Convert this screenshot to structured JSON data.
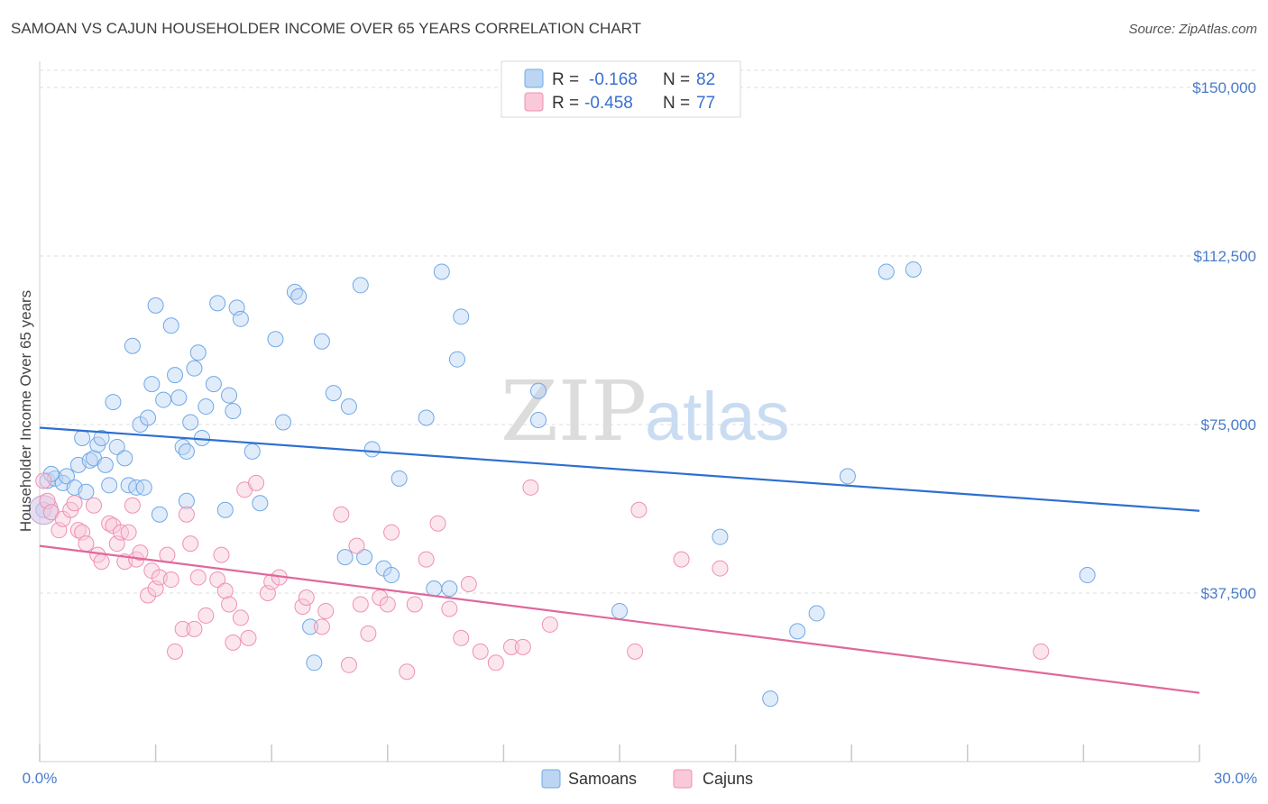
{
  "title": "SAMOAN VS CAJUN HOUSEHOLDER INCOME OVER 65 YEARS CORRELATION CHART",
  "source": "Source: ZipAtlas.com",
  "watermark": {
    "zip": "ZIP",
    "atlas": "atlas"
  },
  "colors": {
    "samoans": "#6fa8e6",
    "cajuns": "#ef90b2",
    "samoans_line": "#2e6fd0",
    "cajuns_line": "#e0689a",
    "tick_label": "#4a7cc9"
  },
  "legend": {
    "rows": [
      {
        "r_label": "R =",
        "r_value": "-0.168",
        "n_label": "N =",
        "n_value": "82"
      },
      {
        "r_label": "R =",
        "r_value": "-0.458",
        "n_label": "N =",
        "n_value": "77"
      }
    ]
  },
  "bottom_legend": [
    "Samoans",
    "Cajuns"
  ],
  "chart_data": {
    "type": "scatter",
    "title": "SAMOAN VS CAJUN HOUSEHOLDER INCOME OVER 65 YEARS CORRELATION CHART",
    "xlabel": "",
    "ylabel": "Householder Income Over 65 years",
    "xlim": [
      0,
      30
    ],
    "ylim": [
      0,
      153000
    ],
    "x_tick_labels": [
      "0.0%",
      "30.0%"
    ],
    "y_ticks": [
      37500,
      75000,
      112500,
      150000
    ],
    "y_tick_labels": [
      "$37,500",
      "$75,000",
      "$112,500",
      "$150,000"
    ],
    "grid": true,
    "series": [
      {
        "name": "Samoans",
        "r": -0.168,
        "n": 82,
        "trend": {
          "x": [
            0,
            30
          ],
          "y": [
            74300,
            55800
          ]
        },
        "points": [
          [
            0.2,
            62500
          ],
          [
            0.4,
            63000
          ],
          [
            0.6,
            62000
          ],
          [
            0.7,
            63500
          ],
          [
            0.9,
            61000
          ],
          [
            1.0,
            66000
          ],
          [
            1.1,
            72000
          ],
          [
            1.3,
            67000
          ],
          [
            1.4,
            67500
          ],
          [
            1.5,
            70500
          ],
          [
            1.6,
            72000
          ],
          [
            1.7,
            66000
          ],
          [
            1.8,
            61500
          ],
          [
            1.9,
            80000
          ],
          [
            2.0,
            70000
          ],
          [
            2.2,
            67500
          ],
          [
            2.3,
            61500
          ],
          [
            2.4,
            92500
          ],
          [
            2.5,
            61000
          ],
          [
            2.6,
            75000
          ],
          [
            2.7,
            61000
          ],
          [
            2.8,
            76500
          ],
          [
            2.9,
            84000
          ],
          [
            3.0,
            101500
          ],
          [
            3.1,
            55000
          ],
          [
            3.2,
            80500
          ],
          [
            3.4,
            97000
          ],
          [
            3.5,
            86000
          ],
          [
            3.6,
            81000
          ],
          [
            3.7,
            70000
          ],
          [
            3.8,
            69000
          ],
          [
            3.9,
            75500
          ],
          [
            4.0,
            87500
          ],
          [
            4.1,
            91000
          ],
          [
            4.2,
            72000
          ],
          [
            4.3,
            79000
          ],
          [
            4.5,
            84000
          ],
          [
            4.6,
            102000
          ],
          [
            4.8,
            56000
          ],
          [
            4.9,
            81500
          ],
          [
            5.0,
            78000
          ],
          [
            5.1,
            101000
          ],
          [
            5.2,
            98500
          ],
          [
            5.5,
            69000
          ],
          [
            5.7,
            57500
          ],
          [
            6.1,
            94000
          ],
          [
            6.3,
            75500
          ],
          [
            6.6,
            104500
          ],
          [
            6.7,
            103500
          ],
          [
            7.0,
            30000
          ],
          [
            7.1,
            22000
          ],
          [
            7.3,
            93500
          ],
          [
            7.6,
            82000
          ],
          [
            7.9,
            45500
          ],
          [
            8.0,
            79000
          ],
          [
            8.3,
            106000
          ],
          [
            8.4,
            45500
          ],
          [
            8.6,
            69500
          ],
          [
            8.9,
            43000
          ],
          [
            9.1,
            41500
          ],
          [
            9.3,
            63000
          ],
          [
            10.0,
            76500
          ],
          [
            10.2,
            38500
          ],
          [
            10.4,
            109000
          ],
          [
            10.6,
            38500
          ],
          [
            10.8,
            89500
          ],
          [
            10.9,
            99000
          ],
          [
            12.9,
            76000
          ],
          [
            12.9,
            82500
          ],
          [
            15.0,
            33500
          ],
          [
            17.6,
            50000
          ],
          [
            18.9,
            14000
          ],
          [
            19.6,
            29000
          ],
          [
            20.1,
            33000
          ],
          [
            20.9,
            63500
          ],
          [
            21.9,
            109000
          ],
          [
            22.6,
            109500
          ],
          [
            27.1,
            41500
          ],
          [
            0.1,
            56000
          ],
          [
            0.3,
            64000
          ],
          [
            1.2,
            60000
          ],
          [
            3.8,
            58000
          ]
        ]
      },
      {
        "name": "Cajuns",
        "r": -0.458,
        "n": 77,
        "trend": {
          "x": [
            0,
            30
          ],
          "y": [
            48000,
            15300
          ]
        },
        "points": [
          [
            0.2,
            58000
          ],
          [
            0.3,
            55500
          ],
          [
            0.5,
            51500
          ],
          [
            0.6,
            54000
          ],
          [
            0.8,
            56000
          ],
          [
            0.9,
            57500
          ],
          [
            1.0,
            51500
          ],
          [
            1.1,
            51000
          ],
          [
            1.2,
            48500
          ],
          [
            1.4,
            57000
          ],
          [
            1.5,
            46000
          ],
          [
            1.6,
            44500
          ],
          [
            1.8,
            53000
          ],
          [
            1.9,
            52500
          ],
          [
            2.0,
            48500
          ],
          [
            2.1,
            51000
          ],
          [
            2.2,
            44500
          ],
          [
            2.3,
            51000
          ],
          [
            2.4,
            57000
          ],
          [
            2.5,
            45000
          ],
          [
            2.6,
            46500
          ],
          [
            2.8,
            37000
          ],
          [
            2.9,
            42500
          ],
          [
            3.0,
            38500
          ],
          [
            3.1,
            41000
          ],
          [
            3.3,
            46000
          ],
          [
            3.4,
            40500
          ],
          [
            3.5,
            24500
          ],
          [
            3.7,
            29500
          ],
          [
            3.8,
            55000
          ],
          [
            3.9,
            48500
          ],
          [
            4.0,
            29500
          ],
          [
            4.1,
            41000
          ],
          [
            4.3,
            32500
          ],
          [
            4.6,
            40500
          ],
          [
            4.7,
            46000
          ],
          [
            4.8,
            38000
          ],
          [
            4.9,
            35000
          ],
          [
            5.0,
            26500
          ],
          [
            5.2,
            32000
          ],
          [
            5.3,
            60500
          ],
          [
            5.4,
            27500
          ],
          [
            5.6,
            62000
          ],
          [
            5.9,
            37500
          ],
          [
            6.0,
            40000
          ],
          [
            6.2,
            41000
          ],
          [
            6.8,
            34500
          ],
          [
            6.9,
            36500
          ],
          [
            7.3,
            30000
          ],
          [
            7.4,
            33500
          ],
          [
            7.8,
            55000
          ],
          [
            8.0,
            21500
          ],
          [
            8.2,
            48000
          ],
          [
            8.3,
            35000
          ],
          [
            8.5,
            28500
          ],
          [
            8.8,
            36500
          ],
          [
            9.0,
            35000
          ],
          [
            9.1,
            51000
          ],
          [
            9.5,
            20000
          ],
          [
            9.7,
            35000
          ],
          [
            10.0,
            45000
          ],
          [
            10.3,
            53000
          ],
          [
            10.6,
            34000
          ],
          [
            10.9,
            27500
          ],
          [
            11.1,
            39500
          ],
          [
            11.4,
            24500
          ],
          [
            11.8,
            22000
          ],
          [
            12.2,
            25500
          ],
          [
            12.5,
            25500
          ],
          [
            12.7,
            61000
          ],
          [
            13.2,
            30500
          ],
          [
            15.4,
            24500
          ],
          [
            15.5,
            56000
          ],
          [
            16.6,
            45000
          ],
          [
            17.6,
            43000
          ],
          [
            25.9,
            24500
          ],
          [
            0.1,
            62500
          ]
        ]
      }
    ]
  }
}
